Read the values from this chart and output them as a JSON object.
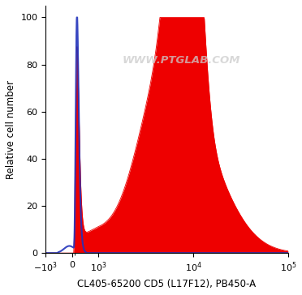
{
  "title": "",
  "xlabel": "CL405-65200 CD5 (L17F12), PB450-A",
  "ylabel": "Relative cell number",
  "watermark": "WWW.PTGLAB.COM",
  "ylim": [
    0,
    105
  ],
  "yticks": [
    0,
    20,
    40,
    60,
    80,
    100
  ],
  "blue_color": "#2233bb",
  "red_color": "#ee0000",
  "linthresh": 1000,
  "linscale": 0.25
}
